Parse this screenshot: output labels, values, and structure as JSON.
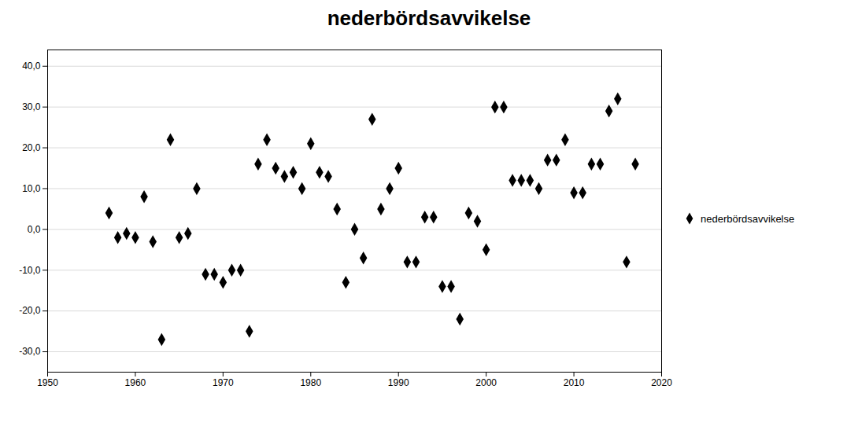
{
  "chart_data": {
    "type": "scatter",
    "title": "nederbördsavvikelse",
    "x": [
      1957,
      1958,
      1959,
      1960,
      1961,
      1962,
      1963,
      1964,
      1965,
      1966,
      1967,
      1968,
      1969,
      1970,
      1971,
      1972,
      1973,
      1974,
      1975,
      1976,
      1977,
      1978,
      1979,
      1980,
      1981,
      1982,
      1983,
      1984,
      1985,
      1986,
      1987,
      1988,
      1989,
      1990,
      1991,
      1992,
      1993,
      1994,
      1995,
      1996,
      1997,
      1998,
      1999,
      2000,
      2001,
      2002,
      2003,
      2004,
      2005,
      2006,
      2007,
      2008,
      2009,
      2010,
      2011,
      2012,
      2013,
      2014,
      2015,
      2016,
      2017
    ],
    "series": [
      {
        "name": "nederbördsavvikelse",
        "marker": "diamond",
        "values": [
          4,
          -2,
          -1,
          -2,
          8,
          -3,
          -27,
          22,
          -2,
          -1,
          10,
          -11,
          -11,
          -13,
          -10,
          -10,
          -25,
          16,
          22,
          15,
          13,
          14,
          10,
          21,
          14,
          13,
          5,
          -13,
          0,
          -7,
          27,
          5,
          10,
          15,
          -8,
          -8,
          3,
          3,
          -14,
          -14,
          -22,
          4,
          2,
          -5,
          30,
          30,
          12,
          12,
          12,
          10,
          17,
          17,
          22,
          9,
          9,
          16,
          16,
          29,
          32,
          -8,
          16
        ]
      }
    ],
    "xlim": [
      1950,
      2020
    ],
    "xticks": [
      1950,
      1960,
      1970,
      1980,
      1990,
      2000,
      2010,
      2020
    ],
    "ylim": [
      -35,
      44
    ],
    "yticks": [
      {
        "value": -30,
        "label": "-30,0"
      },
      {
        "value": -20,
        "label": "-20,0"
      },
      {
        "value": -10,
        "label": "-10,0"
      },
      {
        "value": 0,
        "label": "0,0"
      },
      {
        "value": 10,
        "label": "10,0"
      },
      {
        "value": 20,
        "label": "20,0"
      },
      {
        "value": 30,
        "label": "30,0"
      },
      {
        "value": 40,
        "label": "40,0"
      }
    ],
    "grid": true,
    "legend": "right"
  }
}
